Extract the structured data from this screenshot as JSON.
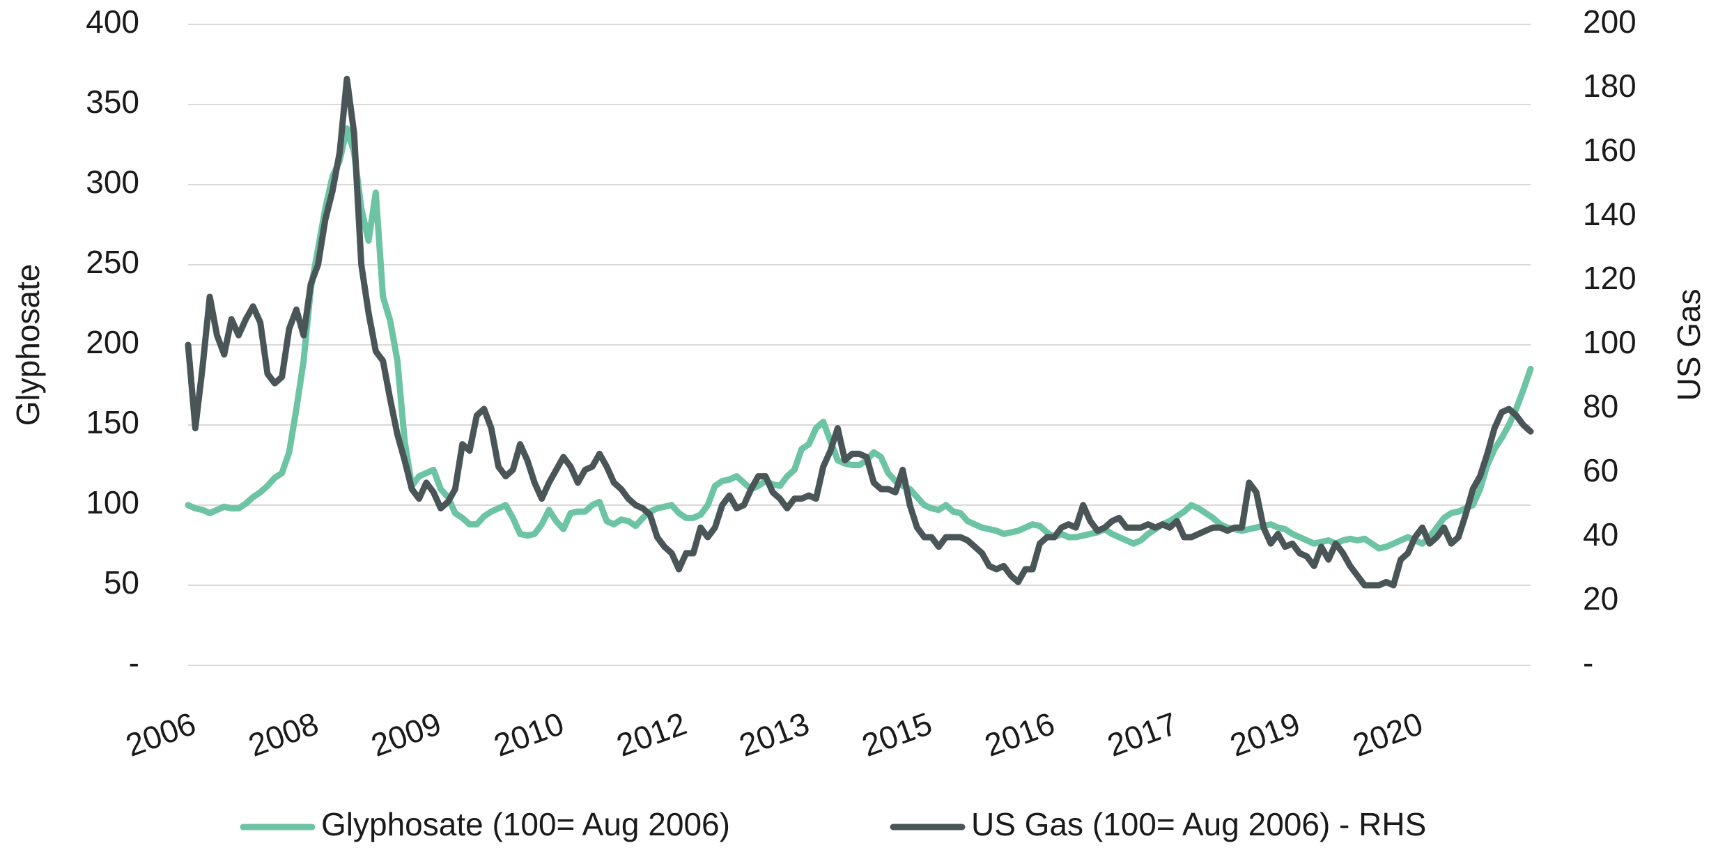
{
  "chart_data": {
    "type": "line",
    "categories": [
      "2006",
      null,
      null,
      null,
      null,
      null,
      null,
      null,
      null,
      null,
      null,
      null,
      null,
      null,
      null,
      null,
      null,
      "2008",
      null,
      null,
      null,
      null,
      null,
      null,
      null,
      null,
      null,
      null,
      null,
      null,
      null,
      null,
      null,
      null,
      "2009",
      null,
      null,
      null,
      null,
      null,
      null,
      null,
      null,
      null,
      null,
      null,
      null,
      null,
      null,
      null,
      null,
      "2010",
      null,
      null,
      null,
      null,
      null,
      null,
      null,
      null,
      null,
      null,
      null,
      null,
      null,
      null,
      null,
      null,
      "2012",
      null,
      null,
      null,
      null,
      null,
      null,
      null,
      null,
      null,
      null,
      null,
      null,
      null,
      null,
      null,
      null,
      "2013",
      null,
      null,
      null,
      null,
      null,
      null,
      null,
      null,
      null,
      null,
      null,
      null,
      null,
      null,
      null,
      null,
      "2015",
      null,
      null,
      null,
      null,
      null,
      null,
      null,
      null,
      null,
      null,
      null,
      null,
      null,
      null,
      null,
      null,
      "2016",
      null,
      null,
      null,
      null,
      null,
      null,
      null,
      null,
      null,
      null,
      null,
      null,
      null,
      null,
      null,
      null,
      "2017",
      null,
      null,
      null,
      null,
      null,
      null,
      null,
      null,
      null,
      null,
      null,
      null,
      null,
      null,
      null,
      null,
      "2019",
      null,
      null,
      null,
      null,
      null,
      null,
      null,
      null,
      null,
      null,
      null,
      null,
      null,
      null,
      null,
      null,
      "2020",
      null,
      null,
      null,
      null,
      null,
      null,
      null,
      null,
      null,
      null,
      null,
      null,
      null,
      null,
      null,
      null
    ],
    "series": [
      {
        "name": "Glyphosate (100= Aug 2006)",
        "color": "#6cc4a4",
        "values": [
          100,
          98,
          97,
          95,
          97,
          99,
          98,
          98,
          101,
          105,
          108,
          112,
          117,
          120,
          133,
          160,
          190,
          235,
          260,
          285,
          305,
          315,
          335,
          320,
          285,
          265,
          295,
          230,
          215,
          190,
          140,
          112,
          118,
          120,
          122,
          110,
          105,
          95,
          92,
          88,
          88,
          93,
          96,
          98,
          100,
          92,
          82,
          81,
          82,
          88,
          97,
          90,
          85,
          95,
          96,
          96,
          100,
          102,
          90,
          88,
          91,
          90,
          87,
          92,
          96,
          98,
          99,
          100,
          95,
          92,
          92,
          94,
          100,
          112,
          115,
          116,
          118,
          114,
          110,
          112,
          115,
          113,
          112,
          118,
          122,
          135,
          138,
          148,
          152,
          140,
          128,
          126,
          125,
          125,
          128,
          133,
          130,
          120,
          115,
          112,
          110,
          105,
          100,
          98,
          97,
          100,
          96,
          95,
          90,
          88,
          86,
          85,
          84,
          82,
          83,
          84,
          86,
          88,
          87,
          83,
          80,
          82,
          80,
          80,
          81,
          82,
          83,
          85,
          82,
          80,
          78,
          76,
          78,
          82,
          85,
          88,
          90,
          93,
          96,
          100,
          98,
          95,
          92,
          88,
          86,
          85,
          84,
          85,
          86,
          87,
          88,
          86,
          85,
          82,
          80,
          78,
          76,
          77,
          78,
          76,
          78,
          79,
          78,
          79,
          76,
          73,
          74,
          76,
          78,
          80,
          78,
          76,
          80,
          86,
          92,
          95,
          96,
          98,
          100,
          110,
          125,
          135,
          142,
          150,
          160,
          172,
          185
        ]
      },
      {
        "name": "US Gas (100= Aug 2006) - RHS",
        "color": "#4a5558",
        "axis": "y2",
        "values": [
          100,
          74,
          93,
          115,
          103,
          97,
          108,
          103,
          108,
          112,
          107,
          91,
          88,
          90,
          105,
          111,
          103,
          119,
          125,
          139,
          148,
          160,
          183,
          166,
          125,
          110,
          98,
          95,
          83,
          72,
          64,
          55,
          52,
          57,
          54,
          49,
          51,
          55,
          69,
          67,
          78,
          80,
          74,
          62,
          59,
          61,
          69,
          64,
          57,
          52,
          57,
          61,
          65,
          62,
          57,
          61,
          62,
          66,
          62,
          57,
          55,
          52,
          50,
          49,
          47,
          40,
          37,
          35,
          30,
          35,
          35,
          43,
          40,
          43,
          50,
          53,
          49,
          50,
          55,
          59,
          59,
          54,
          52,
          49,
          52,
          52,
          53,
          52,
          62,
          67,
          74,
          64,
          66,
          66,
          65,
          57,
          55,
          55,
          54,
          61,
          50,
          43,
          40,
          40,
          37,
          40,
          40,
          40,
          39,
          37,
          35,
          31,
          30,
          31,
          28,
          26,
          30,
          30,
          38,
          40,
          40,
          43,
          44,
          43,
          50,
          45,
          42,
          43,
          45,
          46,
          43,
          43,
          43,
          44,
          43,
          44,
          43,
          45,
          40,
          40,
          41,
          42,
          43,
          43,
          42,
          43,
          43,
          57,
          54,
          43,
          38,
          41,
          37,
          38,
          35,
          34,
          31,
          37,
          33,
          38,
          35,
          31,
          28,
          25,
          25,
          25,
          26,
          25,
          33,
          35,
          40,
          43,
          38,
          40,
          43,
          38,
          40,
          47,
          55,
          59,
          66,
          74,
          79,
          80,
          78,
          75,
          73
        ]
      }
    ],
    "ylabel": "Glyphosate",
    "y2label": "US Gas",
    "ylim": [
      0,
      400
    ],
    "yticks": [
      {
        "value": 0,
        "label": "-"
      },
      50,
      100,
      150,
      200,
      250,
      300,
      350,
      400
    ],
    "y2lim": [
      0,
      200
    ],
    "y2ticks": [
      {
        "value": 0,
        "label": "-"
      },
      20,
      40,
      60,
      80,
      100,
      120,
      140,
      160,
      180,
      200
    ],
    "grid": true,
    "legend": "bottom"
  }
}
